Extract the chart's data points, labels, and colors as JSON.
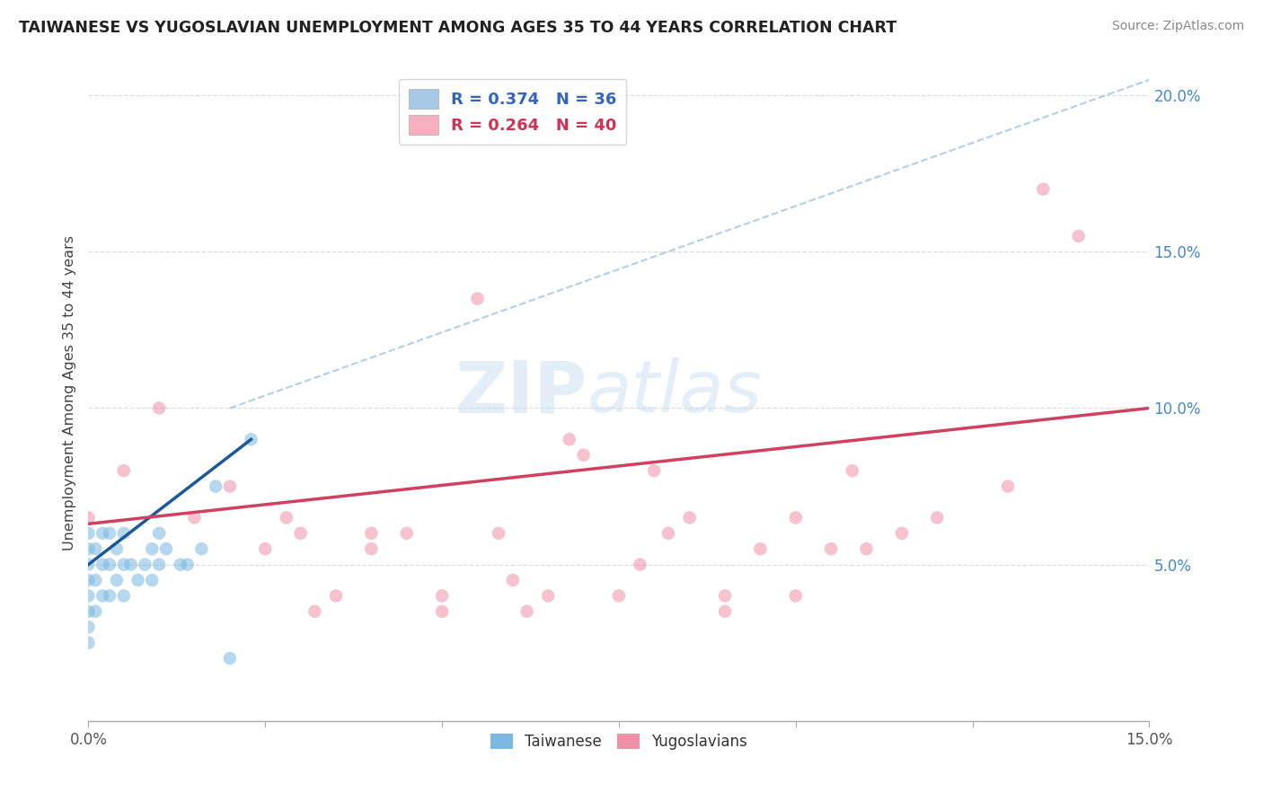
{
  "title": "TAIWANESE VS YUGOSLAVIAN UNEMPLOYMENT AMONG AGES 35 TO 44 YEARS CORRELATION CHART",
  "source": "Source: ZipAtlas.com",
  "ylabel": "Unemployment Among Ages 35 to 44 years",
  "xlim": [
    0.0,
    0.15
  ],
  "ylim": [
    0.0,
    0.21
  ],
  "xticks": [
    0.0,
    0.025,
    0.05,
    0.075,
    0.1,
    0.125,
    0.15
  ],
  "xtick_labels": [
    "0.0%",
    "",
    "",
    "",
    "",
    "",
    "15.0%"
  ],
  "yticks": [
    0.0,
    0.05,
    0.1,
    0.15,
    0.2
  ],
  "ytick_labels": [
    "",
    "5.0%",
    "10.0%",
    "15.0%",
    "20.0%"
  ],
  "legend_entries": [
    {
      "label": "R = 0.374   N = 36",
      "color": "#a8c8e8"
    },
    {
      "label": "R = 0.264   N = 40",
      "color": "#f8b0c0"
    }
  ],
  "watermark_zip": "ZIP",
  "watermark_atlas": "atlas",
  "taiwanese_color": "#7ab8e0",
  "yugoslavian_color": "#f090a8",
  "taiwanese_line_color": "#1a5a9a",
  "yugoslavian_line_color": "#d04060",
  "dashed_line_color": "#90bcd8",
  "grid_color": "#dddddd",
  "background_color": "#ffffff",
  "taiwanese_x": [
    0.0,
    0.0,
    0.0,
    0.0,
    0.0,
    0.0,
    0.0,
    0.0,
    0.001,
    0.001,
    0.001,
    0.002,
    0.002,
    0.002,
    0.003,
    0.003,
    0.003,
    0.004,
    0.004,
    0.005,
    0.005,
    0.005,
    0.006,
    0.007,
    0.008,
    0.009,
    0.009,
    0.01,
    0.01,
    0.011,
    0.013,
    0.014,
    0.016,
    0.018,
    0.02,
    0.023
  ],
  "taiwanese_y": [
    0.025,
    0.03,
    0.035,
    0.04,
    0.045,
    0.05,
    0.055,
    0.06,
    0.035,
    0.045,
    0.055,
    0.04,
    0.05,
    0.06,
    0.04,
    0.05,
    0.06,
    0.045,
    0.055,
    0.04,
    0.05,
    0.06,
    0.05,
    0.045,
    0.05,
    0.045,
    0.055,
    0.05,
    0.06,
    0.055,
    0.05,
    0.05,
    0.055,
    0.075,
    0.02,
    0.09
  ],
  "yugoslavian_x": [
    0.0,
    0.005,
    0.01,
    0.015,
    0.02,
    0.025,
    0.028,
    0.03,
    0.032,
    0.035,
    0.04,
    0.04,
    0.045,
    0.05,
    0.05,
    0.055,
    0.058,
    0.06,
    0.062,
    0.065,
    0.068,
    0.07,
    0.075,
    0.078,
    0.08,
    0.082,
    0.085,
    0.09,
    0.09,
    0.095,
    0.1,
    0.1,
    0.105,
    0.108,
    0.11,
    0.115,
    0.12,
    0.13,
    0.135,
    0.14
  ],
  "yugoslavian_y": [
    0.065,
    0.08,
    0.1,
    0.065,
    0.075,
    0.055,
    0.065,
    0.06,
    0.035,
    0.04,
    0.055,
    0.06,
    0.06,
    0.035,
    0.04,
    0.135,
    0.06,
    0.045,
    0.035,
    0.04,
    0.09,
    0.085,
    0.04,
    0.05,
    0.08,
    0.06,
    0.065,
    0.035,
    0.04,
    0.055,
    0.04,
    0.065,
    0.055,
    0.08,
    0.055,
    0.06,
    0.065,
    0.075,
    0.17,
    0.155
  ],
  "tw_trendline_x": [
    0.0,
    0.023
  ],
  "tw_trendline_y": [
    0.05,
    0.09
  ],
  "yug_trendline_x": [
    0.0,
    0.15
  ],
  "yug_trendline_y": [
    0.063,
    0.1
  ],
  "dashed_line_x": [
    0.02,
    0.15
  ],
  "dashed_line_y": [
    0.1,
    0.205
  ]
}
